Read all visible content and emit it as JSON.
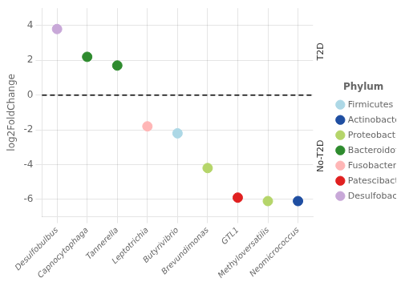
{
  "chart_data": {
    "type": "scatter",
    "categories": [
      "Desulfobulbus",
      "Capnocytophaga",
      "Tannerella",
      "Leptotrichia",
      "Butyrivibrio",
      "Brevundimonas",
      "GTL1",
      "Methyloversatilis",
      "Neomicrococcus"
    ],
    "series": [
      {
        "name": "Firmicutes",
        "color": "#add8e6",
        "values": [
          null,
          null,
          null,
          null,
          -2.2,
          null,
          null,
          null,
          null
        ]
      },
      {
        "name": "Actinobacteriota",
        "color": "#1f4ea1",
        "values": [
          null,
          null,
          null,
          null,
          null,
          null,
          null,
          null,
          -6.1
        ]
      },
      {
        "name": "Proteobacteria",
        "color": "#b5d56a",
        "values": [
          null,
          null,
          null,
          null,
          null,
          -4.2,
          null,
          -6.1,
          null
        ]
      },
      {
        "name": "Bacteroidota",
        "color": "#2e8b2e",
        "values": [
          null,
          2.2,
          1.7,
          null,
          null,
          null,
          null,
          null,
          null
        ]
      },
      {
        "name": "Fusobacteriota",
        "color": "#ffb6b6",
        "values": [
          null,
          null,
          null,
          -1.8,
          null,
          null,
          null,
          null,
          null
        ]
      },
      {
        "name": "Patescibacteria",
        "color": "#e02020",
        "values": [
          null,
          null,
          null,
          null,
          null,
          null,
          -5.9,
          null,
          null
        ]
      },
      {
        "name": "Desulfobacterota",
        "color": "#c8a8d8",
        "values": [
          3.8,
          null,
          null,
          null,
          null,
          null,
          null,
          null,
          null
        ]
      }
    ],
    "ylabel": "log2FoldChange",
    "ylim": [
      -7,
      5
    ],
    "yticks": [
      -6,
      -4,
      -2,
      0,
      2,
      4
    ],
    "grid": true,
    "legend": "right",
    "legend_title": "Phylum",
    "hline": {
      "y": 0,
      "color": "#000000",
      "line_style": "dashed"
    },
    "annotations": [
      "T2D",
      "No-T2D"
    ]
  }
}
